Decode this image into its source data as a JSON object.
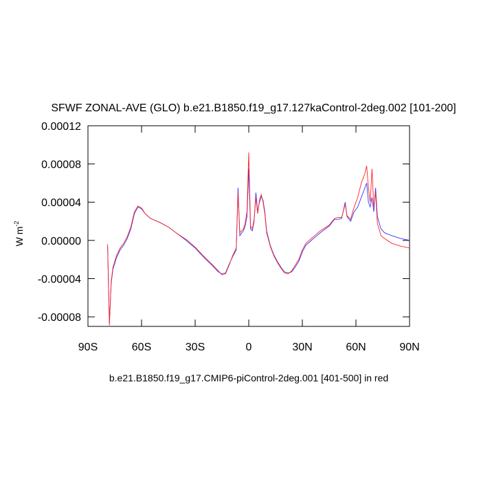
{
  "chart_data": {
    "type": "line",
    "title": "SFWF ZONAL-AVE (GLO) b.e21.B1850.f19_g17.127kaControl-2deg.002 [101-200]",
    "subtitle": "b.e21.B1850.f19_g17.CMIP6-piControl-2deg.001 [401-500] in red",
    "y_label": "W m",
    "y_label_sup": "-2",
    "x": [
      -79,
      -78,
      -77,
      -76,
      -74,
      -72,
      -70,
      -68,
      -66,
      -64,
      -62,
      -60,
      -58,
      -55,
      -50,
      -45,
      -40,
      -35,
      -30,
      -25,
      -20,
      -17,
      -15,
      -13,
      -11,
      -9,
      -7,
      -6,
      -5,
      -3,
      -2,
      -1,
      0,
      1,
      2,
      3,
      4,
      5,
      6,
      7,
      8,
      9,
      10,
      12,
      14,
      16,
      18,
      20,
      22,
      24,
      26,
      28,
      30,
      32,
      35,
      40,
      45,
      48,
      50,
      52,
      54,
      55,
      57,
      59,
      61,
      63,
      65,
      66,
      67,
      68,
      69,
      70,
      71,
      72,
      74,
      76,
      80,
      85,
      90
    ],
    "series": [
      {
        "name": "127kaControl",
        "color": "#3333ff",
        "values": [
          -6e-06,
          -8.7e-05,
          -4.5e-05,
          -3e-05,
          -1.8e-05,
          -1e-05,
          -5e-06,
          2e-06,
          1.2e-05,
          2.8e-05,
          3.5e-05,
          3.3e-05,
          2.8e-05,
          2.3e-05,
          1.9e-05,
          1.4e-05,
          7e-06,
          0,
          -8e-06,
          -1.8e-05,
          -2.7e-05,
          -3.3e-05,
          -3.5e-05,
          -3.4e-05,
          -2.5e-05,
          -1.7e-05,
          -1e-05,
          5.5e-05,
          5e-06,
          1e-05,
          1.5e-05,
          2.5e-05,
          7.5e-05,
          1.2e-05,
          1e-05,
          2e-05,
          5e-05,
          3e-05,
          4e-05,
          4.6e-05,
          4.2e-05,
          3e-05,
          1e-05,
          -5e-06,
          -1.5e-05,
          -2.2e-05,
          -2.8e-05,
          -3.3e-05,
          -3.4e-05,
          -3.3e-05,
          -2.8e-05,
          -2.2e-05,
          -1.2e-05,
          -5e-06,
          0,
          8e-06,
          1.5e-05,
          2.2e-05,
          2.2e-05,
          2.3e-05,
          4e-05,
          2.5e-05,
          2e-05,
          3e-05,
          3.5e-05,
          4.5e-05,
          5.5e-05,
          6e-05,
          4e-05,
          3.5e-05,
          4.5e-05,
          3e-05,
          5.5e-05,
          2.5e-05,
          1.2e-05,
          8e-06,
          5e-06,
          2e-06,
          0
        ]
      },
      {
        "name": "piControl",
        "color": "#ff2222",
        "values": [
          -4e-06,
          -8.9e-05,
          -4.3e-05,
          -2.8e-05,
          -1.6e-05,
          -8e-06,
          -3e-06,
          4e-06,
          1.4e-05,
          3e-05,
          3.6e-05,
          3.4e-05,
          2.8e-05,
          2.3e-05,
          1.9e-05,
          1.4e-05,
          7e-06,
          1e-06,
          -7e-06,
          -1.7e-05,
          -2.6e-05,
          -3.2e-05,
          -3.6e-05,
          -3.5e-05,
          -2.6e-05,
          -1.6e-05,
          -8e-06,
          5e-05,
          8e-06,
          1.2e-05,
          1.8e-05,
          3e-05,
          9.2e-05,
          1.5e-05,
          1.2e-05,
          2.2e-05,
          4.5e-05,
          2.8e-05,
          4.2e-05,
          4.8e-05,
          4e-05,
          2.8e-05,
          8e-06,
          -6e-06,
          -1.6e-05,
          -2.3e-05,
          -2.9e-05,
          -3.4e-05,
          -3.5e-05,
          -3.2e-05,
          -2.6e-05,
          -2e-05,
          -1e-05,
          -3e-06,
          2e-06,
          1e-05,
          1.6e-05,
          2.3e-05,
          2.4e-05,
          2.4e-05,
          3.8e-05,
          2.6e-05,
          2.2e-05,
          3.5e-05,
          4.5e-05,
          6e-05,
          7e-05,
          7.8e-05,
          5.5e-05,
          4e-05,
          7.5e-05,
          3.5e-05,
          5e-05,
          1.8e-05,
          5e-06,
          2e-06,
          -3e-06,
          -6e-06,
          -8e-06
        ]
      }
    ],
    "xlim": [
      -90,
      90
    ],
    "xticks": [
      {
        "value": -90,
        "label": "90S"
      },
      {
        "value": -60,
        "label": "60S"
      },
      {
        "value": -30,
        "label": "30S"
      },
      0,
      {
        "value": 30,
        "label": "30N"
      },
      {
        "value": 60,
        "label": "60N"
      },
      {
        "value": 90,
        "label": "90N"
      }
    ],
    "ylim": [
      -9e-05,
      0.00012
    ],
    "yticks": [
      -8e-05,
      -4e-05,
      {
        "value": 0,
        "label": "0.00000"
      },
      4e-05,
      8e-05,
      0.00012
    ]
  }
}
